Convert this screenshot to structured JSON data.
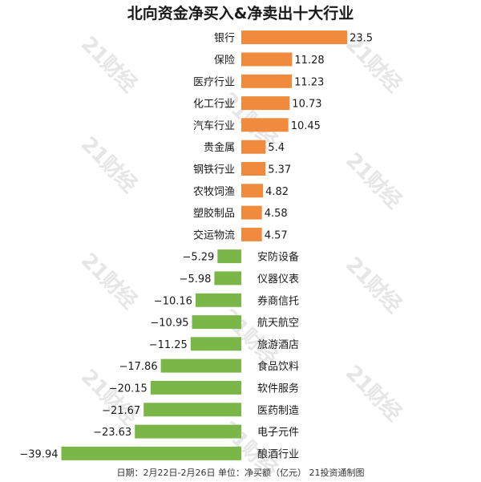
{
  "chart_data": {
    "type": "bar",
    "orientation": "horizontal",
    "title": "北向资金净买入&净卖出十大行业",
    "footer": "日期：2月22日-2月26日 单位：净买额（亿元） 21投资通制图",
    "categories": [
      "银行",
      "保险",
      "医疗行业",
      "化工行业",
      "汽车行业",
      "贵金属",
      "钢铁行业",
      "农牧饲渔",
      "塑胶制品",
      "交运物流",
      "安防设备",
      "仪器仪表",
      "券商信托",
      "航天航空",
      "旅游酒店",
      "食品饮料",
      "软件服务",
      "医药制造",
      "电子元件",
      "酿酒行业"
    ],
    "values": [
      23.5,
      11.28,
      11.23,
      10.73,
      10.45,
      5.4,
      5.37,
      4.82,
      4.58,
      4.57,
      -5.29,
      -5.98,
      -10.16,
      -10.95,
      -11.25,
      -17.86,
      -20.15,
      -21.67,
      -23.63,
      -39.94
    ],
    "value_labels": [
      "23.5",
      "11.28",
      "11.23",
      "10.73",
      "10.45",
      "5.4",
      "5.37",
      "4.82",
      "4.58",
      "4.57",
      "−5.29",
      "−5.98",
      "−10.16",
      "−10.95",
      "−11.25",
      "−17.86",
      "−20.15",
      "−21.67",
      "−23.63",
      "−39.94"
    ],
    "colors": {
      "positive": "#f08a3c",
      "negative": "#7ab648"
    },
    "watermark": "21财经",
    "grid": false,
    "legend": "none"
  }
}
